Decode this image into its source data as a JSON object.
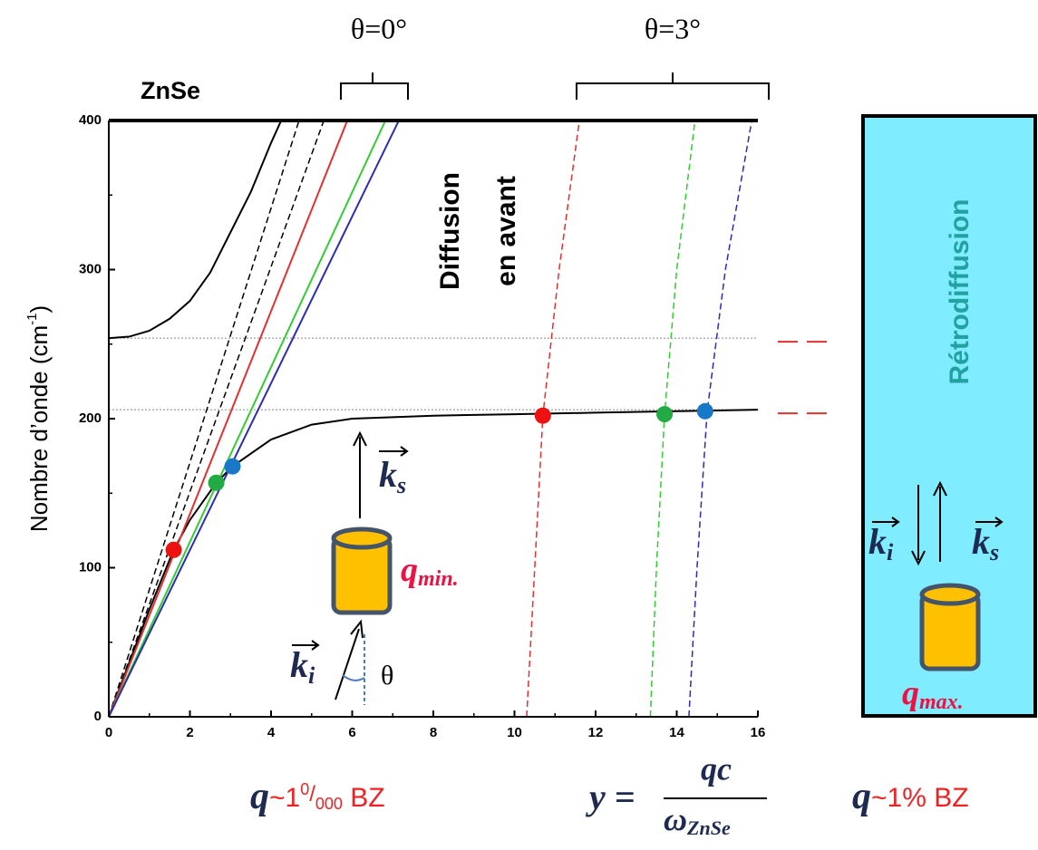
{
  "chart_data": {
    "type": "line",
    "title": "ZnSe",
    "ylabel": [
      "Nombre d’onde (cm",
      "-1",
      ")"
    ],
    "xlim": [
      0,
      16
    ],
    "ylim": [
      0,
      400
    ],
    "xticks": [
      0,
      2,
      4,
      6,
      8,
      10,
      12,
      14,
      16
    ],
    "yticks": [
      0,
      100,
      200,
      300,
      400
    ],
    "hlines": [
      254,
      206
    ],
    "series": [
      {
        "color": "#000000",
        "dash": "solid",
        "x": [
          0,
          0.5,
          1,
          1.5,
          2,
          2.5,
          3,
          3.5,
          4,
          4.25
        ],
        "values": [
          254,
          255,
          259,
          267,
          279,
          298,
          325,
          352,
          385,
          400
        ]
      },
      {
        "color": "#000000",
        "dash": "solid",
        "x": [
          0,
          1,
          1.6,
          2,
          2.65,
          3.05,
          4,
          5,
          6,
          8,
          10,
          12,
          14,
          16
        ],
        "values": [
          0,
          72,
          112,
          132,
          157,
          168,
          186,
          196,
          200,
          202,
          203,
          204,
          205,
          206
        ]
      },
      {
        "color": "#000000",
        "dash": "dashed",
        "x": [
          0,
          4.69
        ],
        "values": [
          0,
          400
        ]
      },
      {
        "color": "#000000",
        "dash": "dashed",
        "x": [
          0,
          5.3
        ],
        "values": [
          0,
          400
        ]
      },
      {
        "color": "#e03030",
        "dash": "solid",
        "x": [
          0,
          5.88
        ],
        "values": [
          0,
          400
        ]
      },
      {
        "color": "#33cc33",
        "dash": "solid",
        "x": [
          0,
          6.82
        ],
        "values": [
          0,
          400
        ]
      },
      {
        "color": "#2b2bb8",
        "dash": "solid",
        "x": [
          0,
          7.15
        ],
        "values": [
          0,
          400
        ]
      },
      {
        "color": "#e03030",
        "dash": "dashed",
        "x": [
          10.3,
          10.5,
          10.7,
          11.1,
          11.6
        ],
        "values": [
          0,
          100,
          202,
          300,
          400
        ]
      },
      {
        "color": "#33cc33",
        "dash": "dashed",
        "x": [
          13.35,
          13.5,
          13.7,
          14.0,
          14.45
        ],
        "values": [
          0,
          100,
          203,
          300,
          400
        ]
      },
      {
        "color": "#2b2bb8",
        "dash": "dashed",
        "x": [
          14.3,
          14.5,
          14.75,
          15.2,
          15.85
        ],
        "values": [
          0,
          100,
          205,
          300,
          400
        ]
      }
    ],
    "points": {
      "x": [
        1.6,
        2.65,
        3.05,
        10.7,
        13.7,
        14.7
      ],
      "values": [
        112,
        157,
        168,
        202,
        203,
        205
      ],
      "colors": [
        "#ee1111",
        "#22aa44",
        "#1a78c8",
        "#ee1111",
        "#22aa44",
        "#1a78c8"
      ]
    }
  },
  "annotations": {
    "theta0": "θ=0°",
    "theta3": "θ=3°",
    "forward": [
      "Diffusion",
      "en avant"
    ],
    "back": "Rétrodiffusion",
    "k": "k",
    "s": "s",
    "i": "i",
    "theta": "θ",
    "q": "q",
    "min": "min.",
    "max": "max.",
    "small": [
      "~1",
      "0",
      "/",
      "000",
      " BZ"
    ],
    "formula": [
      "y =",
      "qc",
      "ω",
      "ZnSe"
    ],
    "large": "~1% BZ"
  }
}
